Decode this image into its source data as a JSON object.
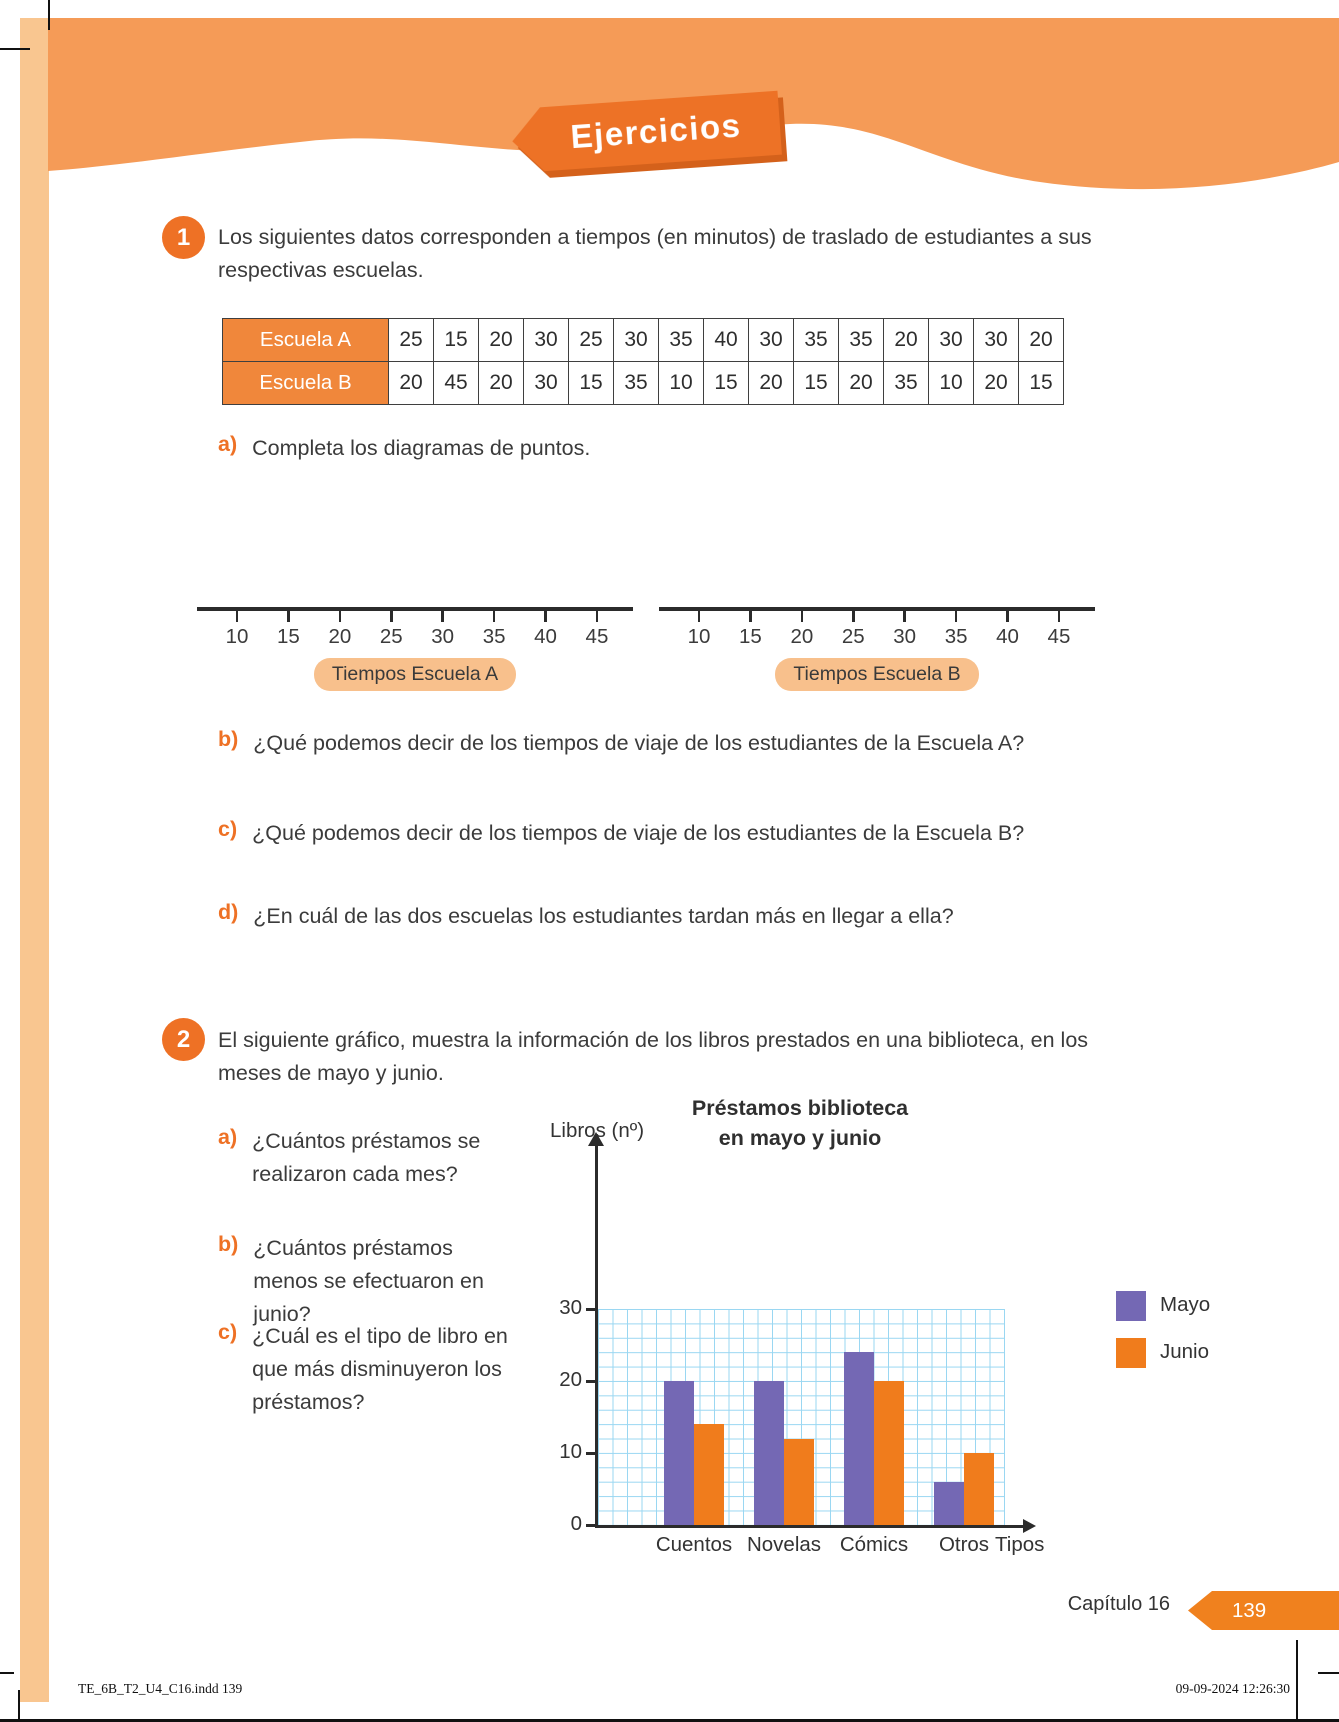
{
  "banner": {
    "label": "Ejercicios"
  },
  "colors": {
    "band_orange": "#F59B57",
    "strip_peach": "#F9C690",
    "banner_orange": "#ED7226",
    "banner_shadow": "#D4611B",
    "table_header_orange": "#F0873B",
    "pill_peach": "#F8C08C",
    "accent_orange": "#EE7125",
    "badge_orange": "#F0811E",
    "bar_purple": "#7468B4",
    "bar_orange": "#F07C1C",
    "grid_blue": "#9AD7F2"
  },
  "exercise1": {
    "number": "1",
    "intro": "Los siguientes datos corresponden a tiempos (en minutos) de traslado de estudiantes a sus respectivas escuelas.",
    "table": {
      "rows": [
        {
          "label": "Escuela A",
          "values": [
            "25",
            "15",
            "20",
            "30",
            "25",
            "30",
            "35",
            "40",
            "30",
            "35",
            "35",
            "20",
            "30",
            "30",
            "20"
          ]
        },
        {
          "label": "Escuela B",
          "values": [
            "20",
            "45",
            "20",
            "30",
            "15",
            "35",
            "10",
            "15",
            "20",
            "15",
            "20",
            "35",
            "10",
            "20",
            "15"
          ]
        }
      ]
    },
    "questions": [
      {
        "letter": "a)",
        "text": "Completa los diagramas de puntos."
      },
      {
        "letter": "b)",
        "text": "¿Qué podemos decir de los tiempos de viaje de los estudiantes de la Escuela A?"
      },
      {
        "letter": "c)",
        "text": "¿Qué podemos decir de los tiempos de viaje de los estudiantes de la Escuela B?"
      },
      {
        "letter": "d)",
        "text": "¿En cuál de las dos escuelas los estudiantes tardan más en llegar a ella?"
      }
    ],
    "dotplots": [
      {
        "ticks": [
          "10",
          "15",
          "20",
          "25",
          "30",
          "35",
          "40",
          "45"
        ],
        "label": "Tiempos Escuela A"
      },
      {
        "ticks": [
          "10",
          "15",
          "20",
          "25",
          "30",
          "35",
          "40",
          "45"
        ],
        "label": "Tiempos Escuela B"
      }
    ]
  },
  "exercise2": {
    "number": "2",
    "intro": "El siguiente gráfico, muestra la información de los libros prestados en una biblioteca, en los meses de mayo y junio.",
    "questions": [
      {
        "letter": "a)",
        "text": "¿Cuántos préstamos se realizaron cada mes?"
      },
      {
        "letter": "b)",
        "text": "¿Cuántos préstamos menos se efectuaron en junio?"
      },
      {
        "letter": "c)",
        "text": "¿Cuál es el tipo de libro en que más disminuyeron los préstamos?"
      }
    ]
  },
  "chart_data": {
    "type": "bar",
    "title": "Préstamos biblioteca en mayo y junio",
    "title_lines": [
      "Préstamos biblioteca",
      "en mayo y junio"
    ],
    "ylabel": "Libros (nº)",
    "xlabel": "Tipos",
    "categories": [
      "Cuentos",
      "Novelas",
      "Cómics",
      "Otros"
    ],
    "series": [
      {
        "name": "Mayo",
        "color": "#7468B4",
        "values": [
          20,
          20,
          24,
          6
        ]
      },
      {
        "name": "Junio",
        "color": "#F07C1C",
        "values": [
          14,
          12,
          20,
          10
        ]
      }
    ],
    "yticks": [
      0,
      10,
      20,
      30
    ],
    "ylim": [
      0,
      30
    ],
    "grid": true,
    "legend_position": "right"
  },
  "footer": {
    "chapter": "Capítulo 16",
    "page_number": "139",
    "print_left": "TE_6B_T2_U4_C16.indd   139",
    "print_right": "09-09-2024   12:26:30"
  }
}
